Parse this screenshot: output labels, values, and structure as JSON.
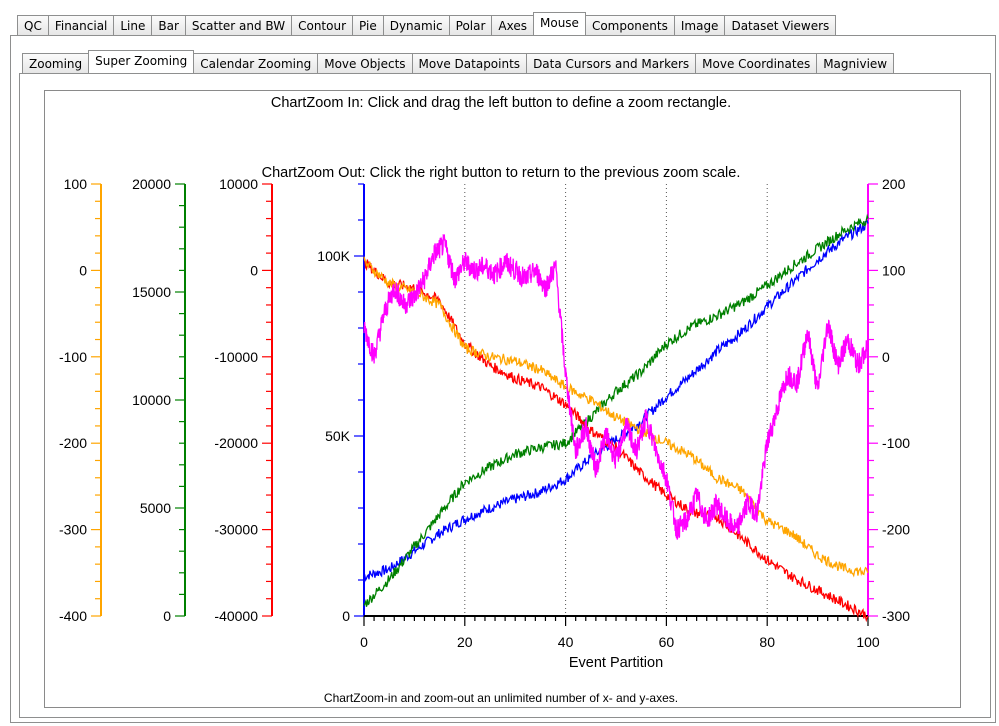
{
  "tabs_main": [
    "QC",
    "Financial",
    "Line",
    "Bar",
    "Scatter and BW",
    "Contour",
    "Pie",
    "Dynamic",
    "Polar",
    "Axes",
    "Mouse",
    "Components",
    "Image",
    "Dataset Viewers"
  ],
  "tabs_main_active": 10,
  "tabs_sub": [
    "Zooming",
    "Super Zooming",
    "Calendar Zooming",
    "Move Objects",
    "Move Datapoints",
    "Data Cursors and Markers",
    "Move Coordinates",
    "Magniview"
  ],
  "tabs_sub_active": 1,
  "chart_data": {
    "type": "line",
    "title": "ChartZoom In: Click and drag the left button to define a zoom rectangle.",
    "subtitle": "ChartZoom Out: Click the right button to return to the previous zoom scale.",
    "footer": "ChartZoom-in and zoom-out an unlimited number of x- and y-axes.",
    "xlabel": "Event Partition",
    "xlim": [
      0,
      100
    ],
    "xticks": [
      "0",
      "20",
      "40",
      "60",
      "80",
      "100"
    ],
    "x_grid_dotted": [
      20,
      40,
      60,
      80
    ],
    "axes": [
      {
        "side": "left",
        "color": "#ffa500",
        "ylim": [
          -400,
          100
        ],
        "ticks": [
          "100",
          "0",
          "-100",
          "-200",
          "-300",
          "-400"
        ],
        "tick_values": [
          100,
          0,
          -100,
          -200,
          -300,
          -400
        ]
      },
      {
        "side": "left",
        "color": "#008000",
        "ylim": [
          0,
          20000
        ],
        "ticks": [
          "20000",
          "15000",
          "10000",
          "5000",
          "0"
        ],
        "tick_values": [
          20000,
          15000,
          10000,
          5000,
          0
        ]
      },
      {
        "side": "left",
        "color": "#ff0000",
        "ylim": [
          -40000,
          10000
        ],
        "ticks": [
          "10000",
          "0",
          "-10000",
          "-20000",
          "-30000",
          "-40000"
        ],
        "tick_values": [
          10000,
          0,
          -10000,
          -20000,
          -30000,
          -40000
        ]
      },
      {
        "side": "left",
        "color": "#0000ff",
        "ylim": [
          0,
          120000
        ],
        "ticks": [
          "100K",
          "50K",
          "0"
        ],
        "tick_values": [
          100000,
          50000,
          0
        ]
      },
      {
        "side": "right",
        "color": "#ff00ff",
        "ylim": [
          -300,
          200
        ],
        "ticks": [
          "200",
          "100",
          "0",
          "-100",
          "-200",
          "-300"
        ],
        "tick_values": [
          200,
          100,
          0,
          -100,
          -200,
          -300
        ]
      }
    ],
    "series": [
      {
        "axis": 3,
        "color": "#0000ff",
        "points": [
          [
            0,
            11000
          ],
          [
            5,
            13000
          ],
          [
            10,
            18000
          ],
          [
            15,
            23000
          ],
          [
            20,
            27000
          ],
          [
            25,
            30000
          ],
          [
            30,
            32500
          ],
          [
            35,
            34500
          ],
          [
            40,
            38000
          ],
          [
            45,
            44000
          ],
          [
            50,
            49000
          ],
          [
            55,
            54000
          ],
          [
            60,
            61000
          ],
          [
            65,
            67000
          ],
          [
            70,
            73500
          ],
          [
            75,
            79000
          ],
          [
            80,
            86000
          ],
          [
            85,
            92500
          ],
          [
            90,
            99000
          ],
          [
            95,
            104500
          ],
          [
            100,
            109000
          ]
        ]
      },
      {
        "axis": 1,
        "color": "#008000",
        "points": [
          [
            0,
            500
          ],
          [
            5,
            1700
          ],
          [
            10,
            3200
          ],
          [
            15,
            4700
          ],
          [
            20,
            6200
          ],
          [
            25,
            6900
          ],
          [
            30,
            7500
          ],
          [
            35,
            7800
          ],
          [
            40,
            8000
          ],
          [
            45,
            9200
          ],
          [
            50,
            10400
          ],
          [
            55,
            11300
          ],
          [
            60,
            12600
          ],
          [
            65,
            13400
          ],
          [
            70,
            13900
          ],
          [
            75,
            14500
          ],
          [
            80,
            15300
          ],
          [
            85,
            16200
          ],
          [
            90,
            17000
          ],
          [
            95,
            17800
          ],
          [
            100,
            18400
          ]
        ]
      },
      {
        "axis": 2,
        "color": "#ff0000",
        "points": [
          [
            0,
            1000
          ],
          [
            5,
            -1500
          ],
          [
            10,
            -2000
          ],
          [
            15,
            -3500
          ],
          [
            20,
            -8500
          ],
          [
            25,
            -11000
          ],
          [
            30,
            -12500
          ],
          [
            35,
            -13500
          ],
          [
            40,
            -15500
          ],
          [
            45,
            -18500
          ],
          [
            50,
            -20500
          ],
          [
            55,
            -23500
          ],
          [
            60,
            -26000
          ],
          [
            65,
            -28000
          ],
          [
            70,
            -28500
          ],
          [
            75,
            -31000
          ],
          [
            80,
            -33500
          ],
          [
            85,
            -35500
          ],
          [
            90,
            -37000
          ],
          [
            95,
            -38500
          ],
          [
            100,
            -40000
          ]
        ]
      },
      {
        "axis": 0,
        "color": "#ffa500",
        "points": [
          [
            0,
            10
          ],
          [
            5,
            -15
          ],
          [
            10,
            -25
          ],
          [
            15,
            -40
          ],
          [
            20,
            -90
          ],
          [
            25,
            -100
          ],
          [
            30,
            -105
          ],
          [
            35,
            -115
          ],
          [
            40,
            -135
          ],
          [
            45,
            -150
          ],
          [
            50,
            -170
          ],
          [
            55,
            -185
          ],
          [
            60,
            -200
          ],
          [
            65,
            -215
          ],
          [
            70,
            -240
          ],
          [
            75,
            -255
          ],
          [
            80,
            -290
          ],
          [
            85,
            -305
          ],
          [
            90,
            -330
          ],
          [
            95,
            -345
          ],
          [
            100,
            -350
          ]
        ]
      },
      {
        "axis": 4,
        "color": "#ff00ff",
        "points": [
          [
            0,
            35
          ],
          [
            2,
            0
          ],
          [
            4,
            50
          ],
          [
            6,
            80
          ],
          [
            8,
            60
          ],
          [
            10,
            70
          ],
          [
            12,
            90
          ],
          [
            14,
            120
          ],
          [
            16,
            130
          ],
          [
            18,
            90
          ],
          [
            20,
            110
          ],
          [
            22,
            100
          ],
          [
            24,
            105
          ],
          [
            26,
            95
          ],
          [
            28,
            110
          ],
          [
            30,
            100
          ],
          [
            32,
            90
          ],
          [
            34,
            100
          ],
          [
            36,
            80
          ],
          [
            38,
            105
          ],
          [
            40,
            -20
          ],
          [
            42,
            -110
          ],
          [
            44,
            -80
          ],
          [
            46,
            -130
          ],
          [
            48,
            -90
          ],
          [
            50,
            -120
          ],
          [
            52,
            -80
          ],
          [
            54,
            -110
          ],
          [
            56,
            -70
          ],
          [
            58,
            -110
          ],
          [
            60,
            -140
          ],
          [
            62,
            -200
          ],
          [
            64,
            -190
          ],
          [
            66,
            -160
          ],
          [
            68,
            -190
          ],
          [
            70,
            -170
          ],
          [
            72,
            -190
          ],
          [
            74,
            -200
          ],
          [
            76,
            -170
          ],
          [
            78,
            -180
          ],
          [
            80,
            -100
          ],
          [
            82,
            -60
          ],
          [
            84,
            -20
          ],
          [
            86,
            -30
          ],
          [
            88,
            30
          ],
          [
            90,
            -40
          ],
          [
            92,
            40
          ],
          [
            94,
            -10
          ],
          [
            96,
            20
          ],
          [
            98,
            -10
          ],
          [
            100,
            10
          ]
        ]
      }
    ]
  }
}
